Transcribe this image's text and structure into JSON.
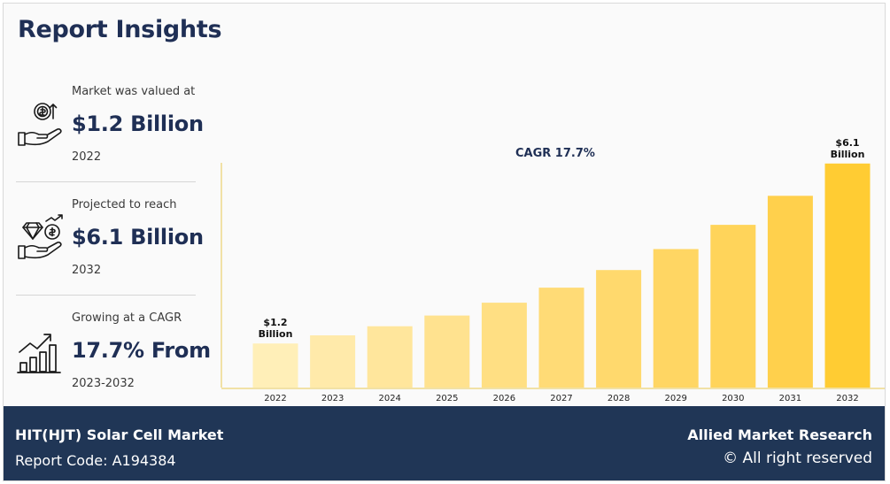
{
  "header": {
    "title": "Report Insights"
  },
  "stats": [
    {
      "label": "Market was valued at",
      "value": "$1.2 Billion",
      "year": "2022",
      "icon": "money-hand-icon"
    },
    {
      "label": "Projected to reach",
      "value": "$6.1 Billion",
      "year": "2032",
      "icon": "diamond-coin-hand-icon"
    },
    {
      "label": "Growing at a CAGR",
      "value": "17.7% From",
      "year": "2023-2032",
      "icon": "growth-chart-icon"
    }
  ],
  "chart_data": {
    "type": "bar",
    "title": "",
    "annotation": "CAGR 17.7%",
    "xlabel": "",
    "ylabel": "",
    "categories": [
      "2022",
      "2023",
      "2024",
      "2025",
      "2026",
      "2027",
      "2028",
      "2029",
      "2030",
      "2031",
      "2032"
    ],
    "values": [
      1.2,
      1.42,
      1.67,
      1.96,
      2.31,
      2.72,
      3.2,
      3.77,
      4.43,
      5.22,
      6.1
    ],
    "ylim": [
      0,
      6.6
    ],
    "grid": false,
    "bar_colors": [
      "#ffefb8",
      "#ffeaaa",
      "#ffe69c",
      "#ffe28f",
      "#ffdf83",
      "#ffdb76",
      "#ffd96d",
      "#ffd663",
      "#ffd45a",
      "#ffd04c",
      "#ffcc33"
    ],
    "callouts": [
      {
        "index": 0,
        "line1": "$1.2",
        "line2": "Billion"
      },
      {
        "index": 10,
        "line1": "$6.1",
        "line2": "Billion"
      }
    ]
  },
  "footer": {
    "market_name": "HIT(HJT) Solar Cell Market",
    "report_code": "Report Code: A194384",
    "brand": "Allied Market Research",
    "rights": "© All right reserved"
  },
  "colors": {
    "navy": "#1f2f55",
    "footer_bg": "#203656",
    "axis": "#f1e1a6"
  }
}
